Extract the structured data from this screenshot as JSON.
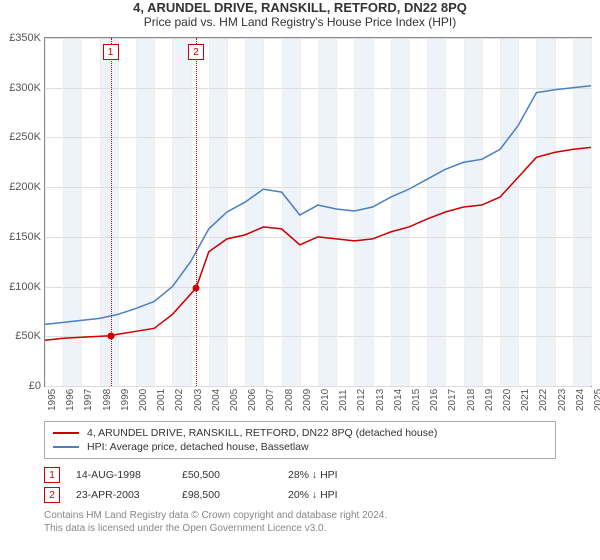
{
  "title": "4, ARUNDEL DRIVE, RANSKILL, RETFORD, DN22 8PQ",
  "subtitle": "Price paid vs. HM Land Registry's House Price Index (HPI)",
  "chart": {
    "type": "line",
    "background_color": "#ffffff",
    "grid_color": "#dddddd",
    "grid_color_minor": "#eeeeee",
    "band_color": "#eef3f9",
    "border_color": "#888888",
    "y_axis": {
      "min": 0,
      "max": 350000,
      "tick_step": 50000,
      "tick_labels": [
        "£0",
        "£50K",
        "£100K",
        "£150K",
        "£200K",
        "£250K",
        "£300K",
        "£350K"
      ],
      "label_color": "#555555",
      "label_fontsize": 11
    },
    "x_axis": {
      "min": 1995,
      "max": 2025,
      "years": [
        1995,
        1996,
        1997,
        1998,
        1999,
        2000,
        2001,
        2002,
        2003,
        2004,
        2005,
        2006,
        2007,
        2008,
        2009,
        2010,
        2011,
        2012,
        2013,
        2014,
        2015,
        2016,
        2017,
        2018,
        2019,
        2020,
        2021,
        2022,
        2023,
        2024,
        2025
      ],
      "label_color": "#555555",
      "label_fontsize": 10
    },
    "series": [
      {
        "name": "price_paid",
        "label": "4, ARUNDEL DRIVE, RANSKILL, RETFORD, DN22 8PQ (detached house)",
        "color": "#cc0000",
        "line_width": 1.5,
        "data": [
          [
            1995,
            46000
          ],
          [
            1996,
            48000
          ],
          [
            1997,
            49000
          ],
          [
            1998.6,
            50500
          ],
          [
            1999,
            52000
          ],
          [
            2000,
            55000
          ],
          [
            2001,
            58000
          ],
          [
            2002,
            72000
          ],
          [
            2003.3,
            98500
          ],
          [
            2004,
            135000
          ],
          [
            2005,
            148000
          ],
          [
            2006,
            152000
          ],
          [
            2007,
            160000
          ],
          [
            2008,
            158000
          ],
          [
            2009,
            142000
          ],
          [
            2010,
            150000
          ],
          [
            2011,
            148000
          ],
          [
            2012,
            146000
          ],
          [
            2013,
            148000
          ],
          [
            2014,
            155000
          ],
          [
            2015,
            160000
          ],
          [
            2016,
            168000
          ],
          [
            2017,
            175000
          ],
          [
            2018,
            180000
          ],
          [
            2019,
            182000
          ],
          [
            2020,
            190000
          ],
          [
            2021,
            210000
          ],
          [
            2022,
            230000
          ],
          [
            2023,
            235000
          ],
          [
            2024,
            238000
          ],
          [
            2025,
            240000
          ]
        ]
      },
      {
        "name": "hpi",
        "label": "HPI: Average price, detached house, Bassetlaw",
        "color": "#4a7fc1",
        "line_width": 1.5,
        "data": [
          [
            1995,
            62000
          ],
          [
            1996,
            64000
          ],
          [
            1997,
            66000
          ],
          [
            1998,
            68000
          ],
          [
            1999,
            72000
          ],
          [
            2000,
            78000
          ],
          [
            2001,
            85000
          ],
          [
            2002,
            100000
          ],
          [
            2003,
            125000
          ],
          [
            2004,
            158000
          ],
          [
            2005,
            175000
          ],
          [
            2006,
            185000
          ],
          [
            2007,
            198000
          ],
          [
            2008,
            195000
          ],
          [
            2009,
            172000
          ],
          [
            2010,
            182000
          ],
          [
            2011,
            178000
          ],
          [
            2012,
            176000
          ],
          [
            2013,
            180000
          ],
          [
            2014,
            190000
          ],
          [
            2015,
            198000
          ],
          [
            2016,
            208000
          ],
          [
            2017,
            218000
          ],
          [
            2018,
            225000
          ],
          [
            2019,
            228000
          ],
          [
            2020,
            238000
          ],
          [
            2021,
            262000
          ],
          [
            2022,
            295000
          ],
          [
            2023,
            298000
          ],
          [
            2024,
            300000
          ],
          [
            2025,
            302000
          ]
        ]
      }
    ],
    "markers": [
      {
        "n": "1",
        "x": 1998.6,
        "y": 50500,
        "color": "#cc0000"
      },
      {
        "n": "2",
        "x": 2003.3,
        "y": 98500,
        "color": "#cc0000"
      }
    ]
  },
  "transactions": [
    {
      "n": "1",
      "date": "14-AUG-1998",
      "price": "£50,500",
      "delta": "28% ↓ HPI"
    },
    {
      "n": "2",
      "date": "23-APR-2003",
      "price": "£98,500",
      "delta": "20% ↓ HPI"
    }
  ],
  "footer": {
    "line1": "Contains HM Land Registry data © Crown copyright and database right 2024.",
    "line2": "This data is licensed under the Open Government Licence v3.0."
  }
}
